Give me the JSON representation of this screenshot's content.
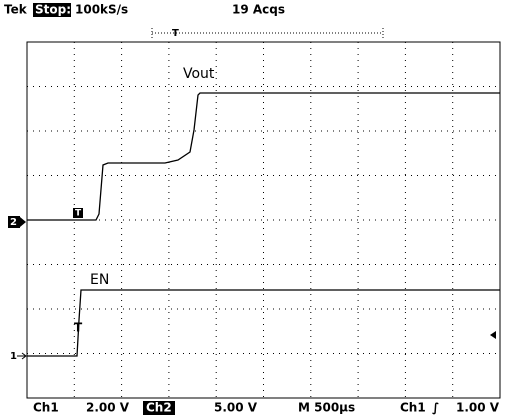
{
  "header": {
    "brand": "Tek",
    "state": "Stop:",
    "rate": "100kS/s",
    "acqs": "19 Acqs"
  },
  "traces": {
    "ch2_label": "Vout",
    "ch1_label": "EN",
    "ch2_marker": "2",
    "ch1_marker": "1",
    "trigger_marker": "T"
  },
  "footer": {
    "ch1": "Ch1",
    "ch1_scale": "2.00 V",
    "ch2": "Ch2",
    "ch2_scale": "5.00 V",
    "timebase": "M 500µs",
    "trigger_source": "Ch1",
    "trigger_slope": "∫",
    "trigger_level": "1.00 V"
  }
}
